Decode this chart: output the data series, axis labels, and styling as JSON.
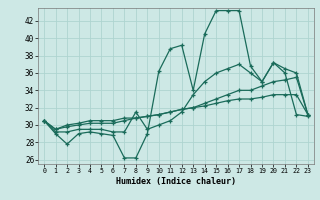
{
  "xlabel": "Humidex (Indice chaleur)",
  "background_color": "#cde8e5",
  "grid_color": "#aed4d0",
  "line_color": "#1a6b5a",
  "xlim": [
    -0.5,
    23.5
  ],
  "ylim": [
    25.5,
    43.5
  ],
  "yticks": [
    26,
    28,
    30,
    32,
    34,
    36,
    38,
    40,
    42
  ],
  "xticks": [
    0,
    1,
    2,
    3,
    4,
    5,
    6,
    7,
    8,
    9,
    10,
    11,
    12,
    13,
    14,
    15,
    16,
    17,
    18,
    19,
    20,
    21,
    22,
    23
  ],
  "series": [
    [
      30.5,
      29.0,
      27.8,
      29.0,
      29.2,
      29.0,
      28.8,
      26.2,
      26.2,
      29.0,
      36.2,
      38.8,
      39.2,
      34.0,
      40.5,
      43.2,
      43.2,
      43.2,
      36.8,
      35.0,
      37.2,
      36.0,
      31.2,
      31.0
    ],
    [
      30.5,
      29.2,
      29.2,
      29.5,
      29.5,
      29.5,
      29.2,
      29.2,
      31.5,
      29.5,
      30.0,
      30.5,
      31.5,
      33.5,
      35.0,
      36.0,
      36.5,
      37.0,
      36.0,
      35.0,
      37.2,
      36.5,
      36.0,
      31.2
    ],
    [
      30.5,
      29.5,
      29.8,
      30.0,
      30.2,
      30.2,
      30.2,
      30.5,
      30.8,
      31.0,
      31.2,
      31.5,
      31.8,
      32.0,
      32.2,
      32.5,
      32.8,
      33.0,
      33.0,
      33.2,
      33.5,
      33.5,
      33.5,
      31.2
    ],
    [
      30.5,
      29.5,
      30.0,
      30.2,
      30.5,
      30.5,
      30.5,
      30.8,
      30.8,
      31.0,
      31.2,
      31.5,
      31.8,
      32.0,
      32.5,
      33.0,
      33.5,
      34.0,
      34.0,
      34.5,
      35.0,
      35.2,
      35.5,
      31.2
    ]
  ]
}
